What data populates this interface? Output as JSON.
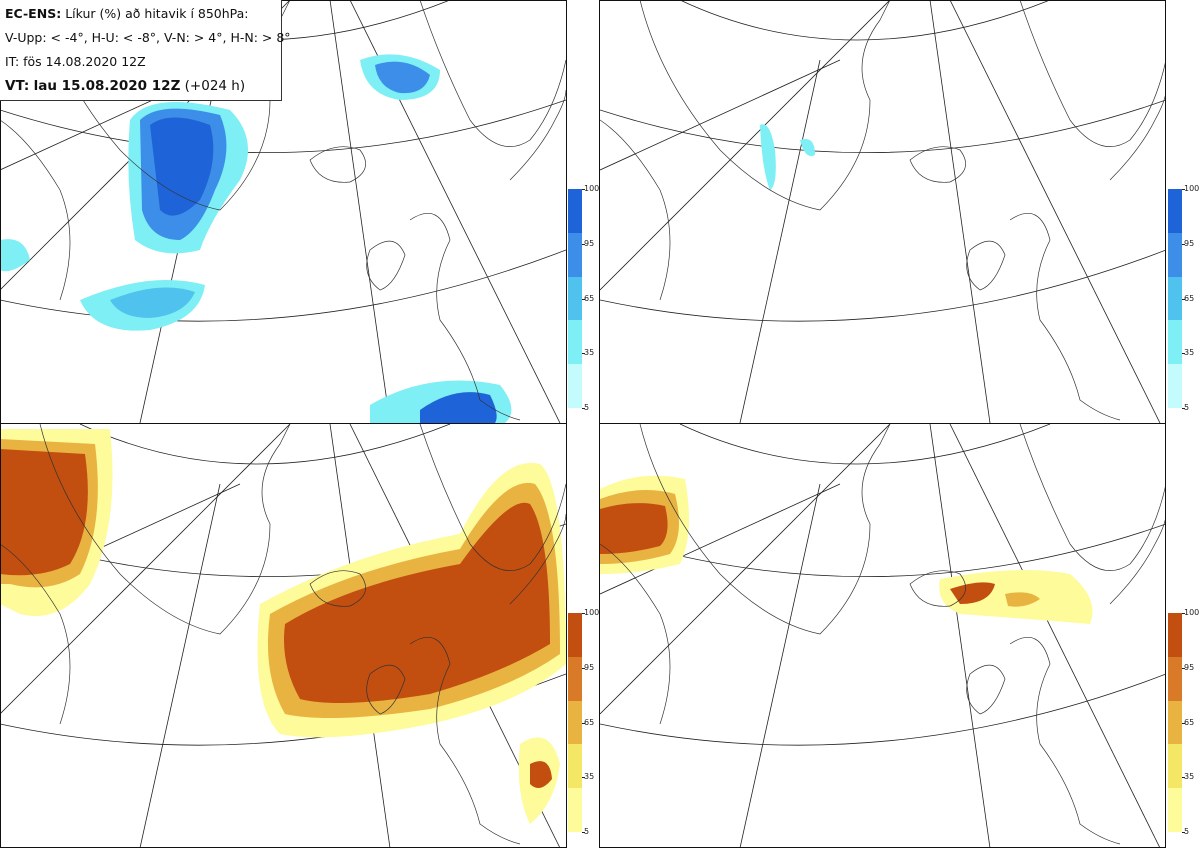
{
  "header": {
    "model": "EC-ENS:",
    "title": "Líkur (%) að hitavik í 850hPa:",
    "legend_line": "V-Upp: < -4°, H-U: < -8°, V-N: > 4°, H-N: > 8°",
    "issue_time": "IT: fös 14.08.2020 12Z",
    "valid_label": "VT:",
    "valid_time": "lau 15.08.2020 12Z",
    "lead": "(+024 h)"
  },
  "panels": [
    {
      "id": "V-Upp",
      "threshold": "< -4°",
      "scheme": "blue"
    },
    {
      "id": "H-U",
      "threshold": "< -8°",
      "scheme": "blue"
    },
    {
      "id": "V-N",
      "threshold": "> 4°",
      "scheme": "orange"
    },
    {
      "id": "H-N",
      "threshold": "> 8°",
      "scheme": "orange"
    }
  ],
  "colorbar": {
    "ticks": [
      "100",
      "95",
      "65",
      "35",
      "5"
    ],
    "blue_colors": [
      "#1f63d8",
      "#3c8ee8",
      "#4fc3ee",
      "#7deff5",
      "#c4fbfd"
    ],
    "orange_colors": [
      "#c24e10",
      "#d97a28",
      "#e8b341",
      "#f5e766",
      "#fdfb9a"
    ]
  }
}
